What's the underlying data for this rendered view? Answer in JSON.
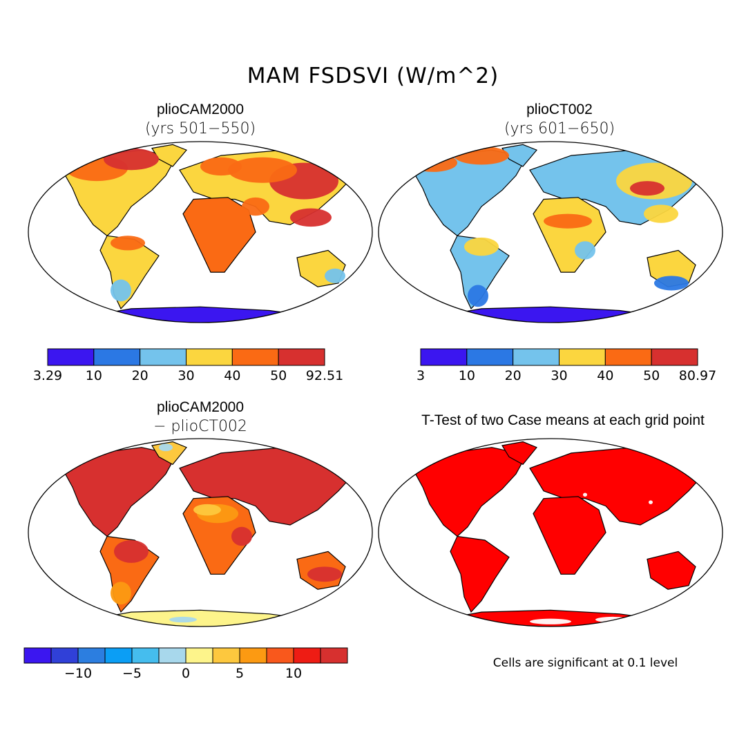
{
  "main_title": "MAM FSDSVI (W/m^2)",
  "panels": [
    {
      "title": "plioCAM2000",
      "subtitle": "(yrs 501−550)"
    },
    {
      "title": "plioCT002",
      "subtitle": "(yrs 601−650)"
    },
    {
      "title": "plioCAM2000",
      "subtitle": "− plioCT002"
    },
    {
      "title": "T-Test of two Case means at each grid point",
      "subtitle": ""
    }
  ],
  "colorbars": {
    "cb1": {
      "colors": [
        "#3b16f0",
        "#2b78e4",
        "#74c3ec",
        "#fbd63f",
        "#fa6a14",
        "#d7302f"
      ],
      "labels": [
        "3.29",
        "10",
        "20",
        "30",
        "40",
        "50",
        "92.51"
      ]
    },
    "cb2": {
      "colors": [
        "#3b16f0",
        "#2b78e4",
        "#74c3ec",
        "#fbd63f",
        "#fa6a14",
        "#d7302f"
      ],
      "labels": [
        "3",
        "10",
        "20",
        "30",
        "40",
        "50",
        "80.97"
      ]
    },
    "cb3": {
      "colors": [
        "#3b16f0",
        "#3040d8",
        "#2c7ee0",
        "#0b9ef5",
        "#45bdee",
        "#a8d8ec",
        "#fdf48b",
        "#fdc83e",
        "#fc9a12",
        "#f9581c",
        "#ee1c14",
        "#d7302f"
      ],
      "labels": [
        "−10",
        "−5",
        "0",
        "5",
        "10"
      ]
    }
  },
  "footnote": "Cells are significant at 0.1 level",
  "map_colors": {
    "p1": {
      "land": "#fbd63f",
      "hot": "#fa6a14",
      "hottest": "#d7302f",
      "cool": "#74c3ec",
      "antarctic": "#3b16f0"
    },
    "p2": {
      "land": "#74c3ec",
      "warm": "#fbd63f",
      "hot": "#fa6a14",
      "hottest": "#d7302f",
      "cold": "#2b78e4",
      "antarctic": "#3b16f0"
    },
    "p3": {
      "land": "#fa6a14",
      "hot": "#d7302f",
      "warm": "#fc9a12",
      "mild": "#fdc83e",
      "antarctic": "#fdf48b",
      "cool": "#a8d8ec"
    },
    "p4": {
      "land": "#ff0000"
    }
  }
}
